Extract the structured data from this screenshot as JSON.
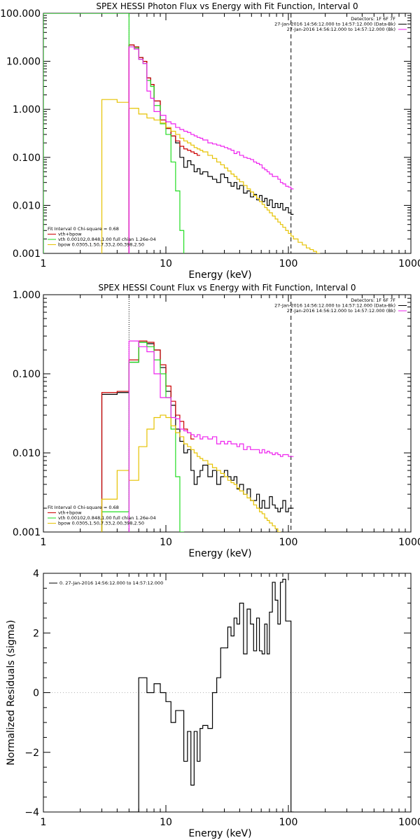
{
  "colors": {
    "data": "#000000",
    "total": "#cc0000",
    "vth": "#22dd22",
    "bpow": "#e6c200",
    "bk": "#ee22ee"
  },
  "chart_data": [
    {
      "type": "line",
      "title": "SPEX HESSI Photon Flux vs Energy with Fit Function, Interval 0",
      "xlabel": "Energy (keV)",
      "ylabel": "",
      "xscale": "log",
      "yscale": "log",
      "xlim": [
        1,
        1000
      ],
      "ylim": [
        0.001,
        100
      ],
      "xticks": [
        "1",
        "10",
        "100",
        "1000"
      ],
      "yticks": [
        "100.000",
        "10.000",
        "1.000",
        "0.100",
        "0.010",
        "0.001"
      ],
      "vlines": [
        {
          "x": 5,
          "style": "dotted",
          "color": "magenta"
        },
        {
          "x": 105,
          "style": "dashed",
          "color": "black"
        }
      ],
      "legend_top_right": [
        {
          "text": "Detectors: 1F 6F 7F",
          "color": "black"
        },
        {
          "text": "27-Jan-2016 14:56:12.000 to 14:57:12.000 (Data-Bk)",
          "color": "black"
        },
        {
          "text": "27-Jan-2016 14:56:12.000 to 14:57:12.000 (Bk)",
          "color": "magenta"
        }
      ],
      "legend_bottom_left": [
        {
          "text": "Fit Interval 0   Chi-square = 0.68",
          "color": "black"
        },
        {
          "text": "vth+bpow",
          "color": "red"
        },
        {
          "text": "vth 0.00102,0.848,1.00  full chian 1.26e-04",
          "color": "green"
        },
        {
          "text": "bpow 0.0305,1.50,7.33,2.00,398,2.50",
          "color": "yellow"
        }
      ],
      "series": [
        {
          "name": "Data-Bk",
          "color": "black",
          "x": [
            5,
            5.5,
            6,
            6.5,
            7,
            7.5,
            8,
            9,
            10,
            11,
            12,
            13,
            14,
            15,
            16,
            17,
            18,
            19,
            20,
            22,
            24,
            26,
            28,
            30,
            32,
            34,
            36,
            38,
            40,
            43,
            46,
            49,
            52,
            55,
            58,
            61,
            64,
            67,
            70,
            74,
            78,
            82,
            86,
            90,
            95,
            100,
            105
          ],
          "y": [
            22,
            20,
            12,
            10,
            4.5,
            3.3,
            1.5,
            0.6,
            0.4,
            0.28,
            0.2,
            0.1,
            0.062,
            0.085,
            0.07,
            0.05,
            0.058,
            0.045,
            0.05,
            0.04,
            0.035,
            0.03,
            0.045,
            0.038,
            0.03,
            0.025,
            0.03,
            0.022,
            0.026,
            0.018,
            0.02,
            0.015,
            0.017,
            0.013,
            0.016,
            0.012,
            0.014,
            0.01,
            0.013,
            0.009,
            0.011,
            0.009,
            0.011,
            0.008,
            0.009,
            0.007,
            0.0065
          ]
        },
        {
          "name": "vth+bpow",
          "color": "red",
          "x": [
            5,
            5.5,
            6,
            6.5,
            7,
            7.5,
            8,
            9,
            10,
            11,
            12,
            13,
            14,
            15,
            16,
            17,
            18
          ],
          "y": [
            22,
            20,
            12,
            10,
            4.5,
            3.3,
            1.5,
            0.6,
            0.4,
            0.28,
            0.22,
            0.17,
            0.15,
            0.14,
            0.13,
            0.12,
            0.11
          ]
        },
        {
          "name": "vth",
          "color": "green",
          "x": [
            1,
            3,
            5,
            5.5,
            6,
            6.5,
            7,
            7.5,
            8,
            9,
            10,
            11,
            12,
            13,
            14
          ],
          "y": [
            100,
            100,
            20,
            19,
            11,
            9,
            4,
            3,
            1.2,
            0.5,
            0.3,
            0.08,
            0.02,
            0.003,
            0.0001
          ]
        },
        {
          "name": "bpow",
          "color": "yellow",
          "x": [
            3,
            4,
            5,
            6,
            7,
            8,
            9,
            10,
            11,
            12,
            13,
            14,
            15,
            16,
            17,
            18,
            19,
            20,
            22,
            24,
            26,
            28,
            30,
            32,
            34,
            36,
            38,
            40,
            43,
            46,
            49,
            52,
            55,
            58,
            61,
            64,
            67,
            70,
            74,
            78,
            82,
            86,
            90,
            95,
            100,
            105,
            110,
            120,
            130,
            140,
            150,
            160,
            170,
            180
          ],
          "y": [
            1.6,
            1.4,
            1.05,
            0.8,
            0.66,
            0.6,
            0.52,
            0.42,
            0.35,
            0.3,
            0.25,
            0.22,
            0.2,
            0.18,
            0.16,
            0.15,
            0.14,
            0.13,
            0.11,
            0.095,
            0.08,
            0.07,
            0.06,
            0.052,
            0.045,
            0.04,
            0.035,
            0.031,
            0.026,
            0.022,
            0.019,
            0.016,
            0.014,
            0.012,
            0.0105,
            0.009,
            0.008,
            0.007,
            0.006,
            0.0052,
            0.0045,
            0.004,
            0.0035,
            0.003,
            0.0026,
            0.0023,
            0.002,
            0.0017,
            0.0015,
            0.0013,
            0.0012,
            0.0011,
            0.001,
            0.0009
          ]
        },
        {
          "name": "Bk",
          "color": "magenta",
          "x": [
            5,
            5.5,
            6,
            6.5,
            7,
            7.5,
            8,
            9,
            10,
            11,
            12,
            13,
            14,
            15,
            16,
            17,
            18,
            19,
            20,
            22,
            24,
            26,
            28,
            30,
            32,
            34,
            36,
            38,
            40,
            43,
            46,
            49,
            52,
            55,
            58,
            61,
            64,
            67,
            70,
            74,
            78,
            82,
            86,
            90,
            95,
            100,
            105
          ],
          "y": [
            20,
            18,
            11,
            9,
            2.4,
            1.7,
            0.9,
            0.75,
            0.55,
            0.5,
            0.42,
            0.38,
            0.35,
            0.33,
            0.3,
            0.28,
            0.26,
            0.25,
            0.23,
            0.2,
            0.19,
            0.18,
            0.17,
            0.16,
            0.15,
            0.14,
            0.12,
            0.13,
            0.11,
            0.1,
            0.095,
            0.09,
            0.08,
            0.075,
            0.07,
            0.06,
            0.055,
            0.05,
            0.045,
            0.04,
            0.04,
            0.035,
            0.03,
            0.028,
            0.025,
            0.024,
            0.022
          ]
        }
      ]
    },
    {
      "type": "line",
      "title": "SPEX HESSI Count Flux vs Energy with Fit Function, Interval 0",
      "xlabel": "Energy (keV)",
      "ylabel": "",
      "xscale": "log",
      "yscale": "log",
      "xlim": [
        1,
        1000
      ],
      "ylim": [
        0.001,
        1
      ],
      "xticks": [
        "1",
        "10",
        "100",
        "1000"
      ],
      "yticks": [
        "1.000",
        "0.100",
        "0.010",
        "0.001"
      ],
      "vlines": [
        {
          "x": 5,
          "style": "dotted",
          "color": "black"
        },
        {
          "x": 105,
          "style": "dashed",
          "color": "black"
        }
      ],
      "legend_top_right": [
        {
          "text": "Detectors: 1F 6F 7F",
          "color": "black"
        },
        {
          "text": "27-Jan-2016 14:56:12.000 to 14:57:12.000 (Data-Bk)",
          "color": "black"
        },
        {
          "text": "27-Jan-2016 14:56:12.000 to 14:57:12.000 (Bk)",
          "color": "magenta"
        }
      ],
      "legend_bottom_left": [
        {
          "text": "Fit Interval 0   Chi-square = 0.68",
          "color": "black"
        },
        {
          "text": "vth+bpow",
          "color": "red"
        },
        {
          "text": "vth 0.00102,0.848,1.00  full chian 1.26e-04",
          "color": "green"
        },
        {
          "text": "bpow 0.0305,1.50,7.33,2.00,398,2.50",
          "color": "yellow"
        }
      ],
      "series": [
        {
          "name": "Data-Bk",
          "color": "black",
          "x": [
            3,
            4,
            5,
            6,
            7,
            8,
            9,
            10,
            11,
            12,
            13,
            14,
            15,
            16,
            17,
            18,
            19,
            20,
            22,
            24,
            26,
            28,
            30,
            32,
            34,
            36,
            38,
            40,
            43,
            46,
            49,
            52,
            55,
            58,
            61,
            64,
            67,
            70,
            74,
            78,
            82,
            86,
            90,
            95,
            100,
            105
          ],
          "y": [
            0.055,
            0.058,
            0.14,
            0.25,
            0.24,
            0.2,
            0.12,
            0.06,
            0.04,
            0.02,
            0.014,
            0.01,
            0.011,
            0.006,
            0.004,
            0.005,
            0.006,
            0.007,
            0.005,
            0.006,
            0.004,
            0.005,
            0.006,
            0.005,
            0.0045,
            0.005,
            0.0035,
            0.004,
            0.003,
            0.0035,
            0.0025,
            0.0025,
            0.003,
            0.002,
            0.0025,
            0.002,
            0.002,
            0.0028,
            0.0022,
            0.002,
            0.0018,
            0.002,
            0.0025,
            0.0018,
            0.002,
            0.002
          ]
        },
        {
          "name": "vth+bpow",
          "color": "red",
          "x": [
            3,
            4,
            5,
            6,
            7,
            8,
            9,
            10,
            11,
            12,
            13,
            14,
            15,
            16
          ],
          "y": [
            0.058,
            0.06,
            0.15,
            0.26,
            0.25,
            0.2,
            0.13,
            0.07,
            0.045,
            0.03,
            0.025,
            0.02,
            0.018,
            0.015
          ]
        },
        {
          "name": "vth",
          "color": "green",
          "x": [
            1,
            3,
            4,
            5,
            6,
            7,
            8,
            9,
            10,
            11,
            12,
            13
          ],
          "y": [
            0.0001,
            0.0018,
            0.0018,
            0.14,
            0.25,
            0.22,
            0.15,
            0.1,
            0.05,
            0.02,
            0.005,
            0.001
          ]
        },
        {
          "name": "bpow",
          "color": "yellow",
          "x": [
            3,
            4,
            5,
            6,
            7,
            8,
            9,
            10,
            11,
            12,
            13,
            14,
            15,
            16,
            17,
            18,
            19,
            20,
            22,
            24,
            26,
            28,
            30,
            32,
            34,
            36,
            38,
            40,
            43,
            46,
            49,
            52,
            55,
            58,
            61,
            64,
            67,
            70,
            74,
            78,
            82,
            86,
            90,
            95,
            100,
            105
          ],
          "y": [
            0.0026,
            0.006,
            0.0045,
            0.012,
            0.02,
            0.028,
            0.03,
            0.028,
            0.022,
            0.018,
            0.016,
            0.013,
            0.012,
            0.011,
            0.01,
            0.009,
            0.0085,
            0.008,
            0.0072,
            0.0065,
            0.006,
            0.0055,
            0.005,
            0.0045,
            0.0042,
            0.004,
            0.0036,
            0.0033,
            0.003,
            0.0027,
            0.0025,
            0.0022,
            0.002,
            0.0018,
            0.0017,
            0.0015,
            0.0014,
            0.0013,
            0.0012,
            0.0011,
            0.001,
            0.00095,
            0.0009,
            0.00085,
            0.0008,
            0.00075
          ]
        },
        {
          "name": "Bk",
          "color": "magenta",
          "x": [
            5,
            6,
            7,
            8,
            9,
            10,
            11,
            12,
            13,
            14,
            15,
            16,
            17,
            18,
            19,
            20,
            22,
            24,
            26,
            28,
            30,
            32,
            34,
            36,
            38,
            40,
            43,
            46,
            49,
            52,
            55,
            58,
            61,
            64,
            67,
            70,
            74,
            78,
            82,
            86,
            90,
            95,
            100,
            105
          ],
          "y": [
            0.26,
            0.22,
            0.19,
            0.1,
            0.05,
            0.05,
            0.028,
            0.027,
            0.02,
            0.019,
            0.018,
            0.017,
            0.016,
            0.017,
            0.015,
            0.016,
            0.015,
            0.016,
            0.013,
            0.014,
            0.013,
            0.014,
            0.013,
            0.013,
            0.012,
            0.013,
            0.011,
            0.012,
            0.011,
            0.011,
            0.011,
            0.01,
            0.011,
            0.01,
            0.0105,
            0.01,
            0.0095,
            0.01,
            0.0095,
            0.009,
            0.0095,
            0.0095,
            0.009,
            0.009
          ]
        }
      ]
    },
    {
      "type": "line",
      "title": "",
      "xlabel": "Energy (keV)",
      "ylabel": "Normalized Residuals (sigma)",
      "xscale": "log",
      "yscale": "linear",
      "xlim": [
        1,
        1000
      ],
      "ylim": [
        -4,
        4
      ],
      "xticks": [
        "1",
        "10",
        "100",
        "1000"
      ],
      "yticks": [
        "4",
        "2",
        "0",
        "−2",
        "−4"
      ],
      "legend_top_left": [
        {
          "text": "0. 27-Jan-2016 14:56:12.000 to 14:57:12.000",
          "color": "black"
        }
      ],
      "series": [
        {
          "name": "0. 27-Jan-2016 14:56:12.000 to 14:57:12.000",
          "color": "black",
          "x": [
            5,
            6,
            7,
            8,
            9,
            10,
            11,
            12,
            13,
            14,
            15,
            16,
            17,
            18,
            19,
            20,
            22,
            24,
            26,
            28,
            30,
            32,
            34,
            36,
            38,
            40,
            43,
            46,
            49,
            52,
            55,
            58,
            61,
            64,
            67,
            70,
            74,
            78,
            82,
            86,
            90,
            95,
            100,
            105
          ],
          "y": [
            -4,
            0.5,
            0,
            0.3,
            0,
            -0.3,
            -1,
            -0.6,
            -0.6,
            -2.3,
            -1.3,
            -3.1,
            -1.3,
            -2.3,
            -1.2,
            -1.1,
            -1.2,
            0.0,
            0.5,
            1.5,
            1.5,
            2.2,
            1.9,
            2.5,
            2.3,
            3.0,
            1.3,
            2.8,
            2.3,
            1.4,
            2.5,
            1.4,
            1.3,
            2.3,
            1.3,
            2.7,
            3.7,
            3.1,
            2.3,
            3.7,
            3.8,
            2.4,
            2.4,
            -4
          ]
        }
      ]
    }
  ]
}
